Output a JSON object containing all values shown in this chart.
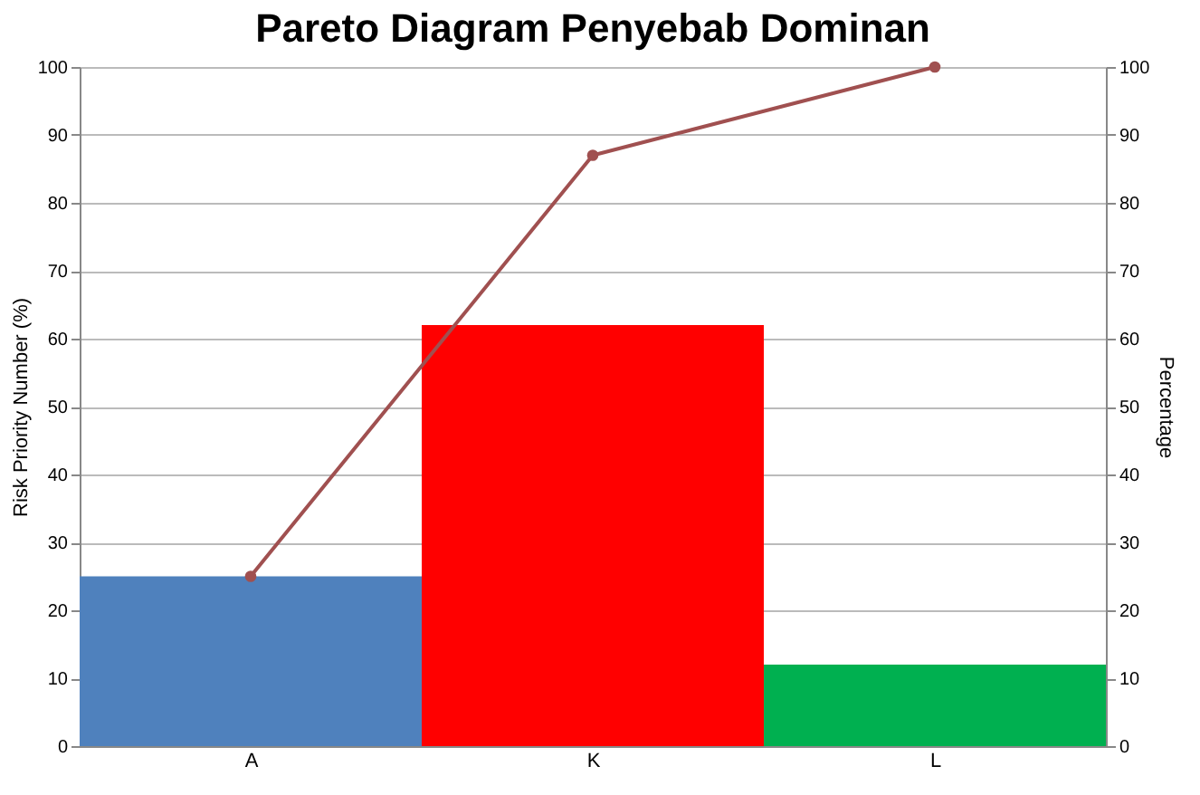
{
  "chart_data": {
    "type": "bar",
    "title": "Pareto Diagram Penyebab Dominan",
    "ylabel": "Risk Priority Number (%)",
    "y2label": "Percentage",
    "categories": [
      "A",
      "K",
      "L"
    ],
    "series": [
      {
        "values": [
          25,
          62,
          12
        ],
        "colors": [
          "#4f81bd",
          "#ff0000",
          "#00b050"
        ]
      },
      {
        "type": "line",
        "axis": "y2",
        "color": "#a05050",
        "values": [
          25,
          87,
          100
        ],
        "marker": "circle"
      }
    ],
    "ylim": [
      0,
      100
    ],
    "yticks": [
      0,
      10,
      20,
      30,
      40,
      50,
      60,
      70,
      80,
      90,
      100
    ],
    "y2lim": [
      0,
      100
    ],
    "y2ticks": [
      0,
      10,
      20,
      30,
      40,
      50,
      60,
      70,
      80,
      90,
      100
    ],
    "grid": true
  }
}
